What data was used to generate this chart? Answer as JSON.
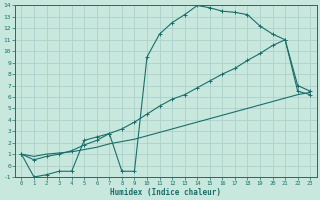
{
  "xlabel": "Humidex (Indice chaleur)",
  "xlim": [
    -0.5,
    23.5
  ],
  "ylim": [
    -1,
    14
  ],
  "xticks": [
    0,
    1,
    2,
    3,
    4,
    5,
    6,
    7,
    8,
    9,
    10,
    11,
    12,
    13,
    14,
    15,
    16,
    17,
    18,
    19,
    20,
    21,
    22,
    23
  ],
  "yticks": [
    -1,
    0,
    1,
    2,
    3,
    4,
    5,
    6,
    7,
    8,
    9,
    10,
    11,
    12,
    13,
    14
  ],
  "bg_color": "#c8e8de",
  "grid_color": "#a8cec8",
  "line_color": "#1a6e6a",
  "line1_x": [
    0,
    1,
    2,
    3,
    4,
    5,
    6,
    7,
    8,
    9,
    10,
    11,
    12,
    13,
    14,
    15,
    16,
    17,
    18,
    19,
    20,
    21,
    22,
    23
  ],
  "line1_y": [
    1.0,
    -1.0,
    -0.8,
    -0.5,
    -0.5,
    2.2,
    2.5,
    2.8,
    -0.5,
    -0.5,
    9.5,
    11.5,
    12.5,
    13.2,
    14.0,
    13.8,
    13.5,
    13.4,
    13.2,
    12.2,
    11.5,
    11.0,
    7.0,
    6.5
  ],
  "line2_x": [
    0,
    1,
    2,
    3,
    4,
    5,
    6,
    7,
    8,
    9,
    10,
    11,
    12,
    13,
    14,
    15,
    16,
    17,
    18,
    19,
    20,
    21,
    22,
    23
  ],
  "line2_y": [
    1.0,
    0.5,
    0.8,
    1.0,
    1.3,
    1.8,
    2.2,
    2.8,
    3.2,
    3.8,
    4.5,
    5.2,
    5.8,
    6.2,
    6.8,
    7.4,
    8.0,
    8.5,
    9.2,
    9.8,
    10.5,
    11.0,
    6.5,
    6.2
  ],
  "line3_x": [
    0,
    1,
    2,
    3,
    4,
    5,
    6,
    7,
    8,
    9,
    10,
    11,
    12,
    13,
    14,
    15,
    16,
    17,
    18,
    19,
    20,
    21,
    22,
    23
  ],
  "line3_y": [
    1.0,
    0.8,
    1.0,
    1.1,
    1.2,
    1.4,
    1.6,
    1.9,
    2.1,
    2.3,
    2.6,
    2.9,
    3.2,
    3.5,
    3.8,
    4.1,
    4.4,
    4.7,
    5.0,
    5.3,
    5.6,
    5.9,
    6.2,
    6.4
  ]
}
